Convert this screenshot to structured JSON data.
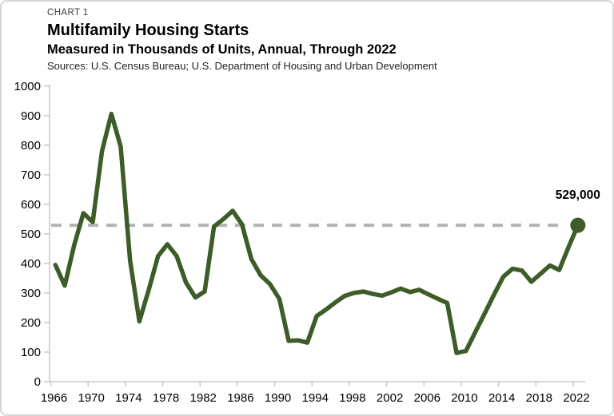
{
  "header": {
    "kicker": "CHART 1",
    "title": "Multifamily Housing Starts",
    "subtitle": "Measured in Thousands of Units, Annual, Through 2022",
    "sources": "Sources: U.S. Census Bureau; U.S. Department of Housing and Urban Development"
  },
  "annotation": {
    "label": "529,000"
  },
  "colors": {
    "line": "#3d5c27",
    "end_dot": "#3d5c27",
    "reference_dash": "#b3b3b3",
    "axis": "#c9c9c9",
    "tick_text": "#000000"
  },
  "chart_data": {
    "type": "line",
    "title": "Multifamily Housing Starts",
    "subtitle": "Measured in Thousands of Units, Annual, Through 2022",
    "xlabel": "",
    "ylabel": "",
    "grid": false,
    "legend": "none",
    "xlim": [
      1966,
      2022
    ],
    "ylim": [
      0,
      1000
    ],
    "xticks": [
      1966,
      1970,
      1974,
      1978,
      1982,
      1986,
      1990,
      1994,
      1998,
      2002,
      2006,
      2010,
      2014,
      2018,
      2022
    ],
    "yticks": [
      0,
      100,
      200,
      300,
      400,
      500,
      600,
      700,
      800,
      900,
      1000
    ],
    "x": [
      1966,
      1967,
      1968,
      1969,
      1970,
      1971,
      1972,
      1973,
      1974,
      1975,
      1976,
      1977,
      1978,
      1979,
      1980,
      1981,
      1982,
      1983,
      1984,
      1985,
      1986,
      1987,
      1988,
      1989,
      1990,
      1991,
      1992,
      1993,
      1994,
      1995,
      1996,
      1997,
      1998,
      1999,
      2000,
      2001,
      2002,
      2003,
      2004,
      2005,
      2006,
      2007,
      2008,
      2009,
      2010,
      2011,
      2012,
      2013,
      2014,
      2015,
      2016,
      2017,
      2018,
      2019,
      2020,
      2021,
      2022
    ],
    "values": [
      395,
      325,
      460,
      570,
      540,
      780,
      906,
      795,
      410,
      204,
      310,
      425,
      465,
      425,
      335,
      285,
      305,
      525,
      550,
      578,
      532,
      415,
      360,
      330,
      280,
      138,
      140,
      132,
      222,
      244,
      268,
      290,
      300,
      305,
      297,
      291,
      302,
      315,
      303,
      311,
      295,
      280,
      266,
      97,
      104,
      167,
      230,
      294,
      355,
      382,
      376,
      338,
      365,
      393,
      378,
      455,
      529
    ],
    "series_name": "Multifamily housing starts (thousands of units)",
    "reference_line": {
      "value": 529,
      "style": "dashed",
      "label": "529,000"
    },
    "end_marker": {
      "x": 2022,
      "value": 529
    }
  }
}
